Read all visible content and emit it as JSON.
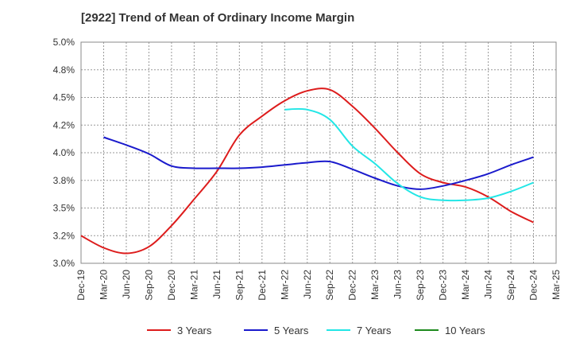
{
  "chart_data": {
    "type": "line",
    "title": "[2922]  Trend of Mean of Ordinary Income Margin",
    "x_ticks": [
      "Dec-19",
      "Mar-20",
      "Jun-20",
      "Sep-20",
      "Dec-20",
      "Mar-21",
      "Jun-21",
      "Sep-21",
      "Dec-21",
      "Mar-22",
      "Jun-22",
      "Sep-22",
      "Dec-22",
      "Mar-23",
      "Jun-23",
      "Sep-23",
      "Dec-23",
      "Mar-24",
      "Jun-24",
      "Sep-24",
      "Dec-24",
      "Mar-25"
    ],
    "y_ticks": [
      "3.0%",
      "3.2%",
      "3.5%",
      "3.8%",
      "4.0%",
      "4.2%",
      "4.5%",
      "4.8%",
      "5.0%"
    ],
    "ylim": [
      3.0,
      5.0
    ],
    "grid": true,
    "legend_position": "bottom",
    "series": [
      {
        "name": "3 Years",
        "color": "#dd1c1c",
        "points": [
          [
            "Dec-19",
            3.25
          ],
          [
            "Mar-20",
            3.14
          ],
          [
            "Jun-20",
            3.09
          ],
          [
            "Sep-20",
            3.15
          ],
          [
            "Dec-20",
            3.34
          ],
          [
            "Mar-21",
            3.58
          ],
          [
            "Jun-21",
            3.83
          ],
          [
            "Sep-21",
            4.16
          ],
          [
            "Dec-21",
            4.33
          ],
          [
            "Mar-22",
            4.47
          ],
          [
            "Jun-22",
            4.56
          ],
          [
            "Sep-22",
            4.57
          ],
          [
            "Dec-22",
            4.42
          ],
          [
            "Mar-23",
            4.22
          ],
          [
            "Jun-23",
            4.0
          ],
          [
            "Sep-23",
            3.81
          ],
          [
            "Dec-23",
            3.73
          ],
          [
            "Mar-24",
            3.69
          ],
          [
            "Jun-24",
            3.6
          ],
          [
            "Sep-24",
            3.47
          ],
          [
            "Dec-24",
            3.37
          ]
        ]
      },
      {
        "name": "5 Years",
        "color": "#1a1acc",
        "points": [
          [
            "Mar-20",
            4.14
          ],
          [
            "Jun-20",
            4.07
          ],
          [
            "Sep-20",
            3.99
          ],
          [
            "Dec-20",
            3.88
          ],
          [
            "Mar-21",
            3.86
          ],
          [
            "Jun-21",
            3.86
          ],
          [
            "Sep-21",
            3.86
          ],
          [
            "Dec-21",
            3.87
          ],
          [
            "Mar-22",
            3.89
          ],
          [
            "Jun-22",
            3.91
          ],
          [
            "Sep-22",
            3.92
          ],
          [
            "Dec-22",
            3.85
          ],
          [
            "Mar-23",
            3.77
          ],
          [
            "Jun-23",
            3.7
          ],
          [
            "Sep-23",
            3.67
          ],
          [
            "Dec-23",
            3.7
          ],
          [
            "Mar-24",
            3.75
          ],
          [
            "Jun-24",
            3.81
          ],
          [
            "Sep-24",
            3.89
          ],
          [
            "Dec-24",
            3.96
          ]
        ]
      },
      {
        "name": "7 Years",
        "color": "#22e6e6",
        "points": [
          [
            "Mar-22",
            4.39
          ],
          [
            "Jun-22",
            4.39
          ],
          [
            "Sep-22",
            4.3
          ],
          [
            "Dec-22",
            4.06
          ],
          [
            "Mar-23",
            3.9
          ],
          [
            "Jun-23",
            3.72
          ],
          [
            "Sep-23",
            3.6
          ],
          [
            "Dec-23",
            3.57
          ],
          [
            "Mar-24",
            3.57
          ],
          [
            "Jun-24",
            3.59
          ],
          [
            "Sep-24",
            3.65
          ],
          [
            "Dec-24",
            3.73
          ]
        ]
      },
      {
        "name": "10 Years",
        "color": "#1e8a1e",
        "points": []
      }
    ]
  }
}
